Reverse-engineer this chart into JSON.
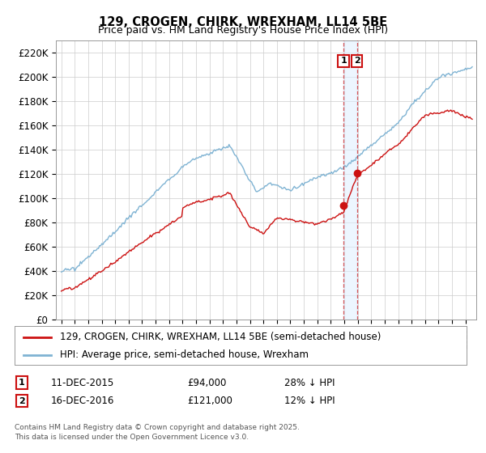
{
  "title": "129, CROGEN, CHIRK, WREXHAM, LL14 5BE",
  "subtitle": "Price paid vs. HM Land Registry's House Price Index (HPI)",
  "ylabel_ticks": [
    "£0",
    "£20K",
    "£40K",
    "£60K",
    "£80K",
    "£100K",
    "£120K",
    "£140K",
    "£160K",
    "£180K",
    "£200K",
    "£220K"
  ],
  "ytick_values": [
    0,
    20000,
    40000,
    60000,
    80000,
    100000,
    120000,
    140000,
    160000,
    180000,
    200000,
    220000
  ],
  "ylim": [
    0,
    230000
  ],
  "xlim_start": 1994.6,
  "xlim_end": 2025.8,
  "hpi_color": "#7fb3d3",
  "price_color": "#cc1111",
  "transaction1_date": 2015.95,
  "transaction1_price": 94000,
  "transaction1_label": "1",
  "transaction1_display": "11-DEC-2015",
  "transaction1_amount": "£94,000",
  "transaction1_hpi_pct": "28% ↓ HPI",
  "transaction2_date": 2016.95,
  "transaction2_price": 121000,
  "transaction2_label": "2",
  "transaction2_display": "16-DEC-2016",
  "transaction2_amount": "£121,000",
  "transaction2_hpi_pct": "12% ↓ HPI",
  "legend_line1": "129, CROGEN, CHIRK, WREXHAM, LL14 5BE (semi-detached house)",
  "legend_line2": "HPI: Average price, semi-detached house, Wrexham",
  "footer": "Contains HM Land Registry data © Crown copyright and database right 2025.\nThis data is licensed under the Open Government Licence v3.0.",
  "background_color": "#ffffff",
  "grid_color": "#cccccc"
}
